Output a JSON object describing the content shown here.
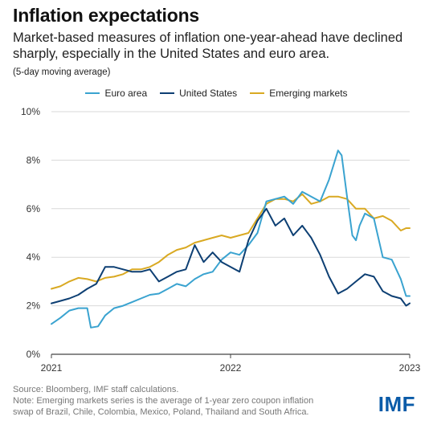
{
  "header": {
    "title": "Inflation expectations",
    "subtitle": "Market-based measures of inflation one-year-ahead have declined sharply, especially in the United States and euro area.",
    "note": "(5-day moving average)"
  },
  "footer": {
    "source": "Source: Bloomberg, IMF staff calculations.",
    "note": "Note: Emerging markets series is the average of 1-year zero coupon inflation swap of Brazil, Chile, Colombia, Mexico, Poland, Thailand and South Africa.",
    "logo": "IMF"
  },
  "colors": {
    "euro_area": "#3aa3d0",
    "united_states": "#0d3f73",
    "emerging_markets": "#d9a922",
    "grid": "#d9d9d9",
    "axis": "#444444"
  },
  "chart_data": {
    "type": "line",
    "title": "Inflation expectations",
    "xlabel": "",
    "ylabel": "",
    "x_ticks": [
      "2021",
      "2022",
      "2023"
    ],
    "y_ticks": [
      "0%",
      "2%",
      "4%",
      "6%",
      "8%",
      "10%"
    ],
    "xlim": [
      2021.0,
      2023.0
    ],
    "ylim": [
      0,
      10
    ],
    "grid": "horizontal",
    "legend_position": "top",
    "series": [
      {
        "name": "Euro area",
        "x": [
          2021.0,
          2021.05,
          2021.1,
          2021.15,
          2021.2,
          2021.22,
          2021.26,
          2021.3,
          2021.35,
          2021.4,
          2021.45,
          2021.5,
          2021.55,
          2021.6,
          2021.65,
          2021.7,
          2021.75,
          2021.8,
          2021.85,
          2021.9,
          2021.95,
          2022.0,
          2022.05,
          2022.1,
          2022.15,
          2022.2,
          2022.25,
          2022.3,
          2022.35,
          2022.4,
          2022.45,
          2022.5,
          2022.55,
          2022.6,
          2022.62,
          2022.65,
          2022.68,
          2022.7,
          2022.72,
          2022.75,
          2022.8,
          2022.85,
          2022.9,
          2022.95,
          2022.98,
          2023.0
        ],
        "values": [
          1.25,
          1.5,
          1.8,
          1.9,
          1.9,
          1.1,
          1.15,
          1.6,
          1.9,
          2.0,
          2.15,
          2.3,
          2.45,
          2.5,
          2.7,
          2.9,
          2.8,
          3.1,
          3.3,
          3.4,
          3.9,
          4.2,
          4.1,
          4.5,
          5.0,
          6.3,
          6.4,
          6.5,
          6.2,
          6.7,
          6.5,
          6.3,
          7.2,
          8.4,
          8.2,
          6.5,
          4.9,
          4.7,
          5.3,
          5.8,
          5.6,
          4.0,
          3.9,
          3.1,
          2.4,
          2.4
        ]
      },
      {
        "name": "United States",
        "x": [
          2021.0,
          2021.05,
          2021.1,
          2021.15,
          2021.2,
          2021.25,
          2021.3,
          2021.35,
          2021.4,
          2021.45,
          2021.5,
          2021.55,
          2021.6,
          2021.65,
          2021.7,
          2021.75,
          2021.8,
          2021.85,
          2021.9,
          2021.95,
          2022.0,
          2022.05,
          2022.1,
          2022.15,
          2022.2,
          2022.25,
          2022.3,
          2022.35,
          2022.4,
          2022.45,
          2022.5,
          2022.55,
          2022.6,
          2022.65,
          2022.7,
          2022.75,
          2022.8,
          2022.85,
          2022.9,
          2022.95,
          2022.98,
          2023.0
        ],
        "values": [
          2.1,
          2.2,
          2.3,
          2.45,
          2.7,
          2.9,
          3.6,
          3.6,
          3.5,
          3.4,
          3.4,
          3.5,
          3.0,
          3.2,
          3.4,
          3.5,
          4.5,
          3.8,
          4.2,
          3.8,
          3.6,
          3.4,
          4.7,
          5.5,
          6.0,
          5.3,
          5.6,
          4.9,
          5.3,
          4.8,
          4.1,
          3.2,
          2.5,
          2.7,
          3.0,
          3.3,
          3.2,
          2.6,
          2.4,
          2.3,
          2.0,
          2.1
        ]
      },
      {
        "name": "Emerging markets",
        "x": [
          2021.0,
          2021.05,
          2021.1,
          2021.15,
          2021.2,
          2021.25,
          2021.3,
          2021.35,
          2021.4,
          2021.45,
          2021.5,
          2021.55,
          2021.6,
          2021.65,
          2021.7,
          2021.75,
          2021.8,
          2021.85,
          2021.9,
          2021.95,
          2022.0,
          2022.05,
          2022.1,
          2022.15,
          2022.2,
          2022.25,
          2022.3,
          2022.35,
          2022.4,
          2022.45,
          2022.5,
          2022.55,
          2022.6,
          2022.65,
          2022.7,
          2022.75,
          2022.8,
          2022.85,
          2022.9,
          2022.95,
          2022.98,
          2023.0
        ],
        "values": [
          2.7,
          2.8,
          3.0,
          3.15,
          3.1,
          3.0,
          3.15,
          3.2,
          3.3,
          3.5,
          3.5,
          3.6,
          3.8,
          4.1,
          4.3,
          4.4,
          4.6,
          4.7,
          4.8,
          4.9,
          4.8,
          4.9,
          5.0,
          5.6,
          6.2,
          6.4,
          6.4,
          6.3,
          6.6,
          6.2,
          6.3,
          6.5,
          6.5,
          6.4,
          6.0,
          6.0,
          5.6,
          5.7,
          5.5,
          5.1,
          5.2,
          5.2
        ]
      }
    ]
  }
}
